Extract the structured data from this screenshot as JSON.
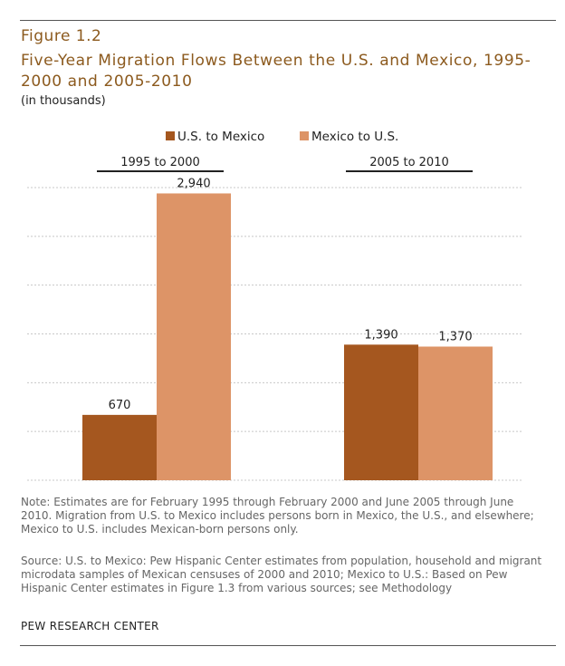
{
  "figure_label": "Figure 1.2",
  "title": "Five-Year Migration Flows Between the U.S. and Mexico, 1995-2000 and 2005-2010",
  "subtitle": "(in thousands)",
  "colors": {
    "us_to_mexico": "#a5571f",
    "mexico_to_us": "#dd9467",
    "accent_text": "#8c5a1e",
    "gridline": "#c8c8c8"
  },
  "chart_data": {
    "type": "bar",
    "categories": [
      "1995 to 2000",
      "2005 to 2010"
    ],
    "series": [
      {
        "name": "U.S. to Mexico",
        "values": [
          670,
          1390
        ],
        "labels": [
          "670",
          "1,390"
        ]
      },
      {
        "name": "Mexico to U.S.",
        "values": [
          2940,
          1370
        ],
        "labels": [
          "2,940",
          "1,370"
        ]
      }
    ],
    "title": "Five-Year Migration Flows Between the U.S. and Mexico, 1995-2000 and 2005-2010",
    "xlabel": "",
    "ylabel": "",
    "units": "thousands",
    "ylim": [
      0,
      3000
    ],
    "gridlines": [
      0,
      500,
      1000,
      1500,
      2000,
      2500,
      3000
    ],
    "legend_position": "top"
  },
  "note": "Note: Estimates are for February 1995 through February 2000 and June 2005 through June 2010. Migration from U.S. to Mexico includes persons born in Mexico, the U.S., and elsewhere; Mexico to U.S. includes Mexican-born persons only.",
  "source": "Source: U.S. to Mexico: Pew Hispanic Center estimates from population, household and migrant microdata samples of Mexican censuses of 2000 and 2010; Mexico to U.S.: Based on Pew Hispanic Center estimates in Figure 1.3 from various sources; see Methodology",
  "credit": "PEW RESEARCH CENTER"
}
